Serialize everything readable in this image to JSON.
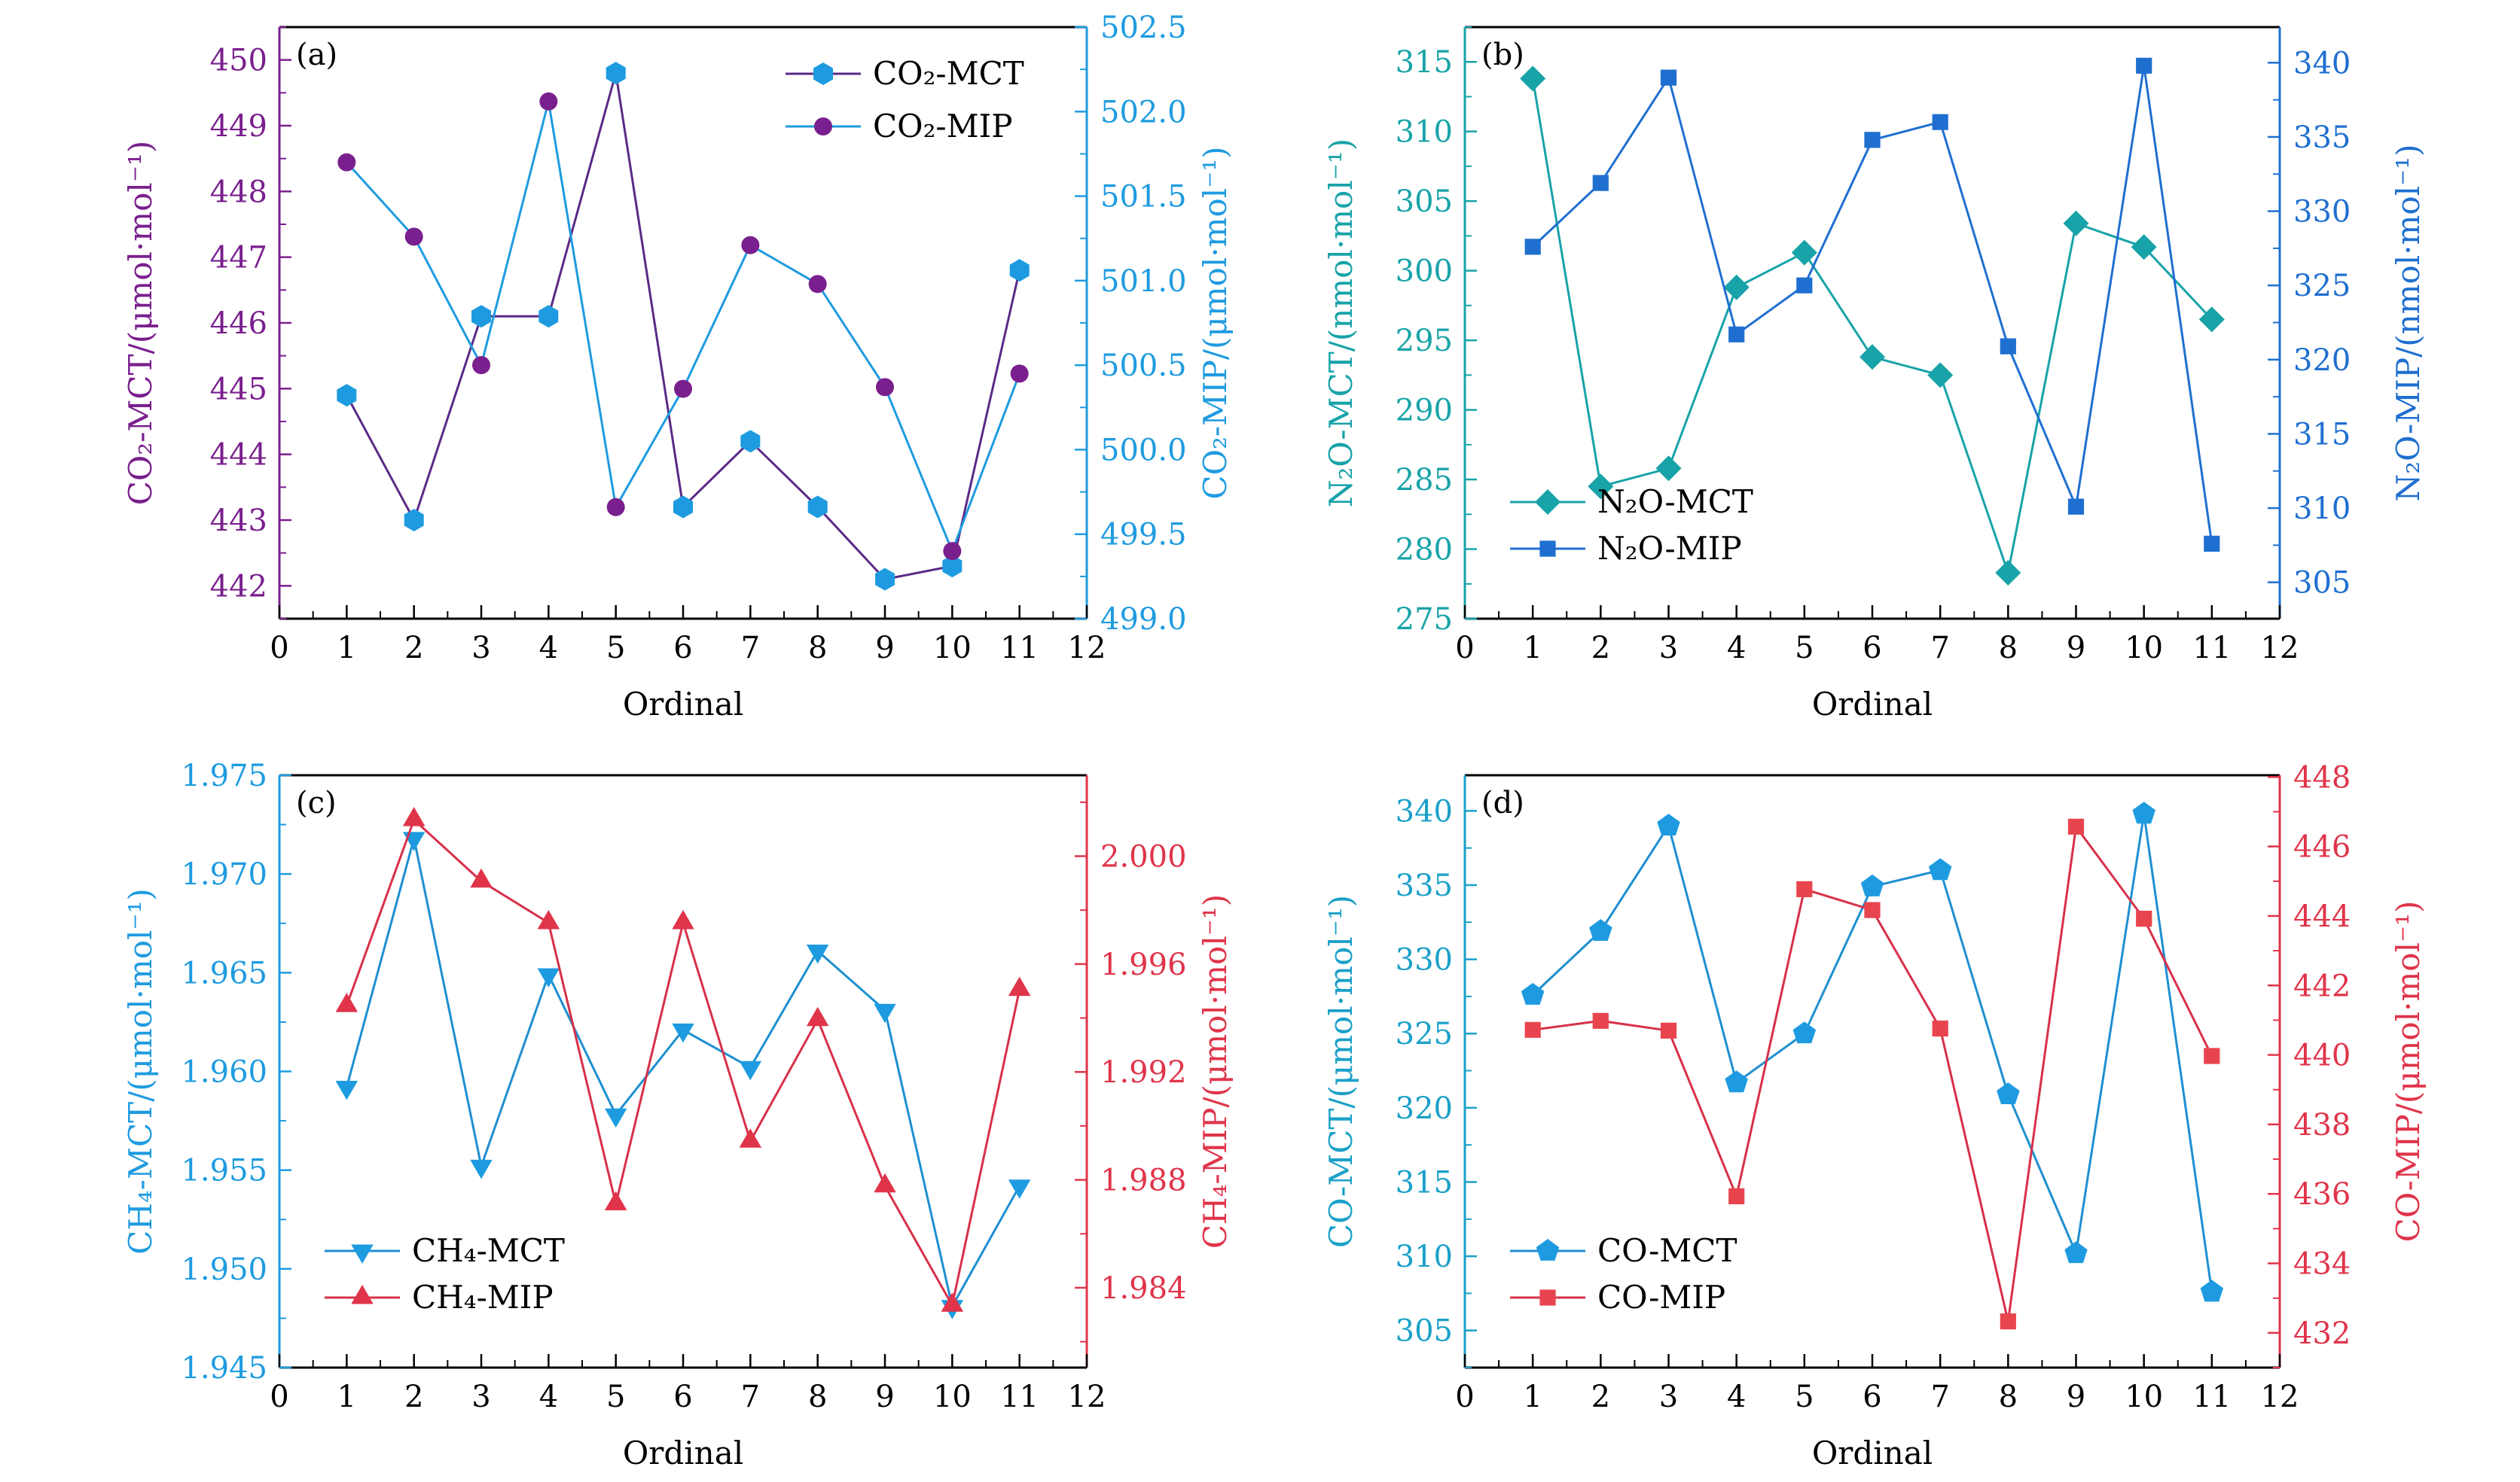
{
  "chart_data": [
    {
      "type": "line",
      "panel_label": "(a)",
      "xlabel": "Ordinal",
      "xlim": [
        0,
        12
      ],
      "xticks": [
        "0",
        "1",
        "2",
        "3",
        "4",
        "5",
        "6",
        "7",
        "8",
        "9",
        "10",
        "11",
        "12"
      ],
      "ylabel_left": "CO₂-MCT/(μmol·mol⁻¹)",
      "ylabel_right": "CO₂-MIP/(μmol·mol⁻¹)",
      "ylim_left": [
        441.5,
        450.5
      ],
      "ylim_right": [
        499.0,
        502.5
      ],
      "yticks_left": [
        "442",
        "443",
        "444",
        "445",
        "446",
        "447",
        "448",
        "449",
        "450"
      ],
      "yticks_right": [
        "499.0",
        "499.5",
        "500.0",
        "500.5",
        "501.0",
        "501.5",
        "502.0",
        "502.5"
      ],
      "color_left": "#7a1f8e",
      "color_right": "#1e9be0",
      "legend": "top-right",
      "grid": false,
      "x": [
        1,
        2,
        3,
        4,
        5,
        6,
        7,
        8,
        9,
        10,
        11
      ],
      "series": [
        {
          "name": "CO₂-MCT",
          "axis": "left",
          "marker": "hexagon",
          "marker_color": "#1e9be0",
          "line_color": "#5b2a86",
          "values": [
            444.9,
            443.0,
            446.1,
            446.1,
            449.8,
            443.2,
            444.2,
            443.2,
            442.1,
            442.3,
            446.8
          ]
        },
        {
          "name": "CO₂-MIP",
          "axis": "right",
          "marker": "circle",
          "marker_color": "#7a1f8e",
          "line_color": "#1e9be0",
          "values": [
            501.7,
            501.26,
            500.5,
            502.06,
            499.66,
            500.36,
            501.21,
            500.98,
            500.37,
            499.4,
            500.45
          ]
        }
      ]
    },
    {
      "type": "line",
      "panel_label": "(b)",
      "xlabel": "Ordinal",
      "xlim": [
        0,
        12
      ],
      "xticks": [
        "0",
        "1",
        "2",
        "3",
        "4",
        "5",
        "6",
        "7",
        "8",
        "9",
        "10",
        "11",
        "12"
      ],
      "ylabel_left": "N₂O-MCT/(nmol·mol⁻¹)",
      "ylabel_right": "N₂O-MIP/(nmol·mol⁻¹)",
      "ylim_left": [
        275,
        317.5
      ],
      "ylim_right": [
        302.55,
        342.4
      ],
      "yticks_left": [
        "275",
        "280",
        "285",
        "290",
        "295",
        "300",
        "305",
        "310",
        "315"
      ],
      "yticks_right": [
        "305",
        "310",
        "315",
        "320",
        "325",
        "330",
        "335",
        "340"
      ],
      "color_left": "#17a3a8",
      "color_right": "#1f6fd0",
      "legend": "bottom-left",
      "grid": false,
      "x": [
        1,
        2,
        3,
        4,
        5,
        6,
        7,
        8,
        9,
        10,
        11
      ],
      "series": [
        {
          "name": "N₂O-MCT",
          "axis": "left",
          "marker": "diamond",
          "marker_color": "#17a3a8",
          "line_color": "#17a3a8",
          "values": [
            313.8,
            284.5,
            285.8,
            298.8,
            301.3,
            293.8,
            292.5,
            278.3,
            303.4,
            301.7,
            296.5
          ]
        },
        {
          "name": "N₂O-MIP",
          "axis": "right",
          "marker": "square",
          "marker_color": "#1f6fd0",
          "line_color": "#1f6fd0",
          "values": [
            327.6,
            331.9,
            339.0,
            321.7,
            325.0,
            334.8,
            336.0,
            320.9,
            310.1,
            339.8,
            307.6
          ]
        }
      ]
    },
    {
      "type": "line",
      "panel_label": "(c)",
      "xlabel": "Ordinal",
      "xlim": [
        0,
        12
      ],
      "xticks": [
        "0",
        "1",
        "2",
        "3",
        "4",
        "5",
        "6",
        "7",
        "8",
        "9",
        "10",
        "11",
        "12"
      ],
      "ylabel_left": "CH₄-MCT/(μmol·mol⁻¹)",
      "ylabel_right": "CH₄-MIP/(μmol·mol⁻¹)",
      "ylim_left": [
        1.945,
        1.975
      ],
      "ylim_right": [
        1.98104,
        2.003
      ],
      "yticks_left": [
        "1.945",
        "1.950",
        "1.955",
        "1.960",
        "1.965",
        "1.970",
        "1.975"
      ],
      "yticks_right": [
        "1.984",
        "1.988",
        "1.992",
        "1.996",
        "2.000"
      ],
      "color_left": "#1e9be0",
      "color_right": "#e0344a",
      "legend": "bottom-left",
      "grid": false,
      "x": [
        1,
        2,
        3,
        4,
        5,
        6,
        7,
        8,
        9,
        10,
        11
      ],
      "series": [
        {
          "name": "CH₄-MCT",
          "axis": "left",
          "marker": "triangle-down",
          "marker_color": "#1e9be0",
          "line_color": "#1e8fd0",
          "values": [
            1.9592,
            1.9718,
            1.9552,
            1.9649,
            1.9578,
            1.9621,
            1.9602,
            1.9661,
            1.9631,
            1.9481,
            1.9542
          ]
        },
        {
          "name": "CH₄-MIP",
          "axis": "right",
          "marker": "triangle-up",
          "marker_color": "#e0344a",
          "line_color": "#d8304a",
          "values": [
            1.99446,
            2.00135,
            1.99907,
            1.99753,
            1.98711,
            1.99753,
            1.98943,
            1.99394,
            1.98777,
            1.98335,
            1.99506
          ]
        }
      ]
    },
    {
      "type": "line",
      "panel_label": "(d)",
      "xlabel": "Ordinal",
      "xlim": [
        0,
        12
      ],
      "xticks": [
        "0",
        "1",
        "2",
        "3",
        "4",
        "5",
        "6",
        "7",
        "8",
        "9",
        "10",
        "11",
        "12"
      ],
      "ylabel_left": "CO-MCT/(μmol·mol⁻¹)",
      "ylabel_right": "CO-MIP/(μmol·mol⁻¹)",
      "ylim_left": [
        302.5,
        342.4
      ],
      "ylim_right": [
        431.0,
        448.05
      ],
      "yticks_left": [
        "305",
        "310",
        "315",
        "320",
        "325",
        "330",
        "335",
        "340"
      ],
      "yticks_right": [
        "432",
        "434",
        "436",
        "438",
        "440",
        "442",
        "444",
        "446",
        "448"
      ],
      "color_left": "#1aa0c8",
      "color_right": "#e0344a",
      "legend": "bottom-left",
      "grid": false,
      "x": [
        1,
        2,
        3,
        4,
        5,
        6,
        7,
        8,
        9,
        10,
        11
      ],
      "series": [
        {
          "name": "CO-MCT",
          "axis": "left",
          "marker": "pentagon",
          "marker_color": "#1e9be0",
          "line_color": "#1e8fd0",
          "values": [
            327.6,
            331.9,
            339.0,
            321.7,
            325.0,
            334.9,
            336.0,
            320.9,
            310.2,
            339.8,
            307.6
          ]
        },
        {
          "name": "CO-MIP",
          "axis": "right",
          "marker": "square",
          "marker_color": "#e8444e",
          "line_color": "#d8304a",
          "values": [
            440.72,
            440.98,
            440.7,
            435.93,
            444.77,
            444.17,
            440.76,
            432.33,
            446.57,
            443.92,
            439.97
          ]
        }
      ]
    }
  ]
}
